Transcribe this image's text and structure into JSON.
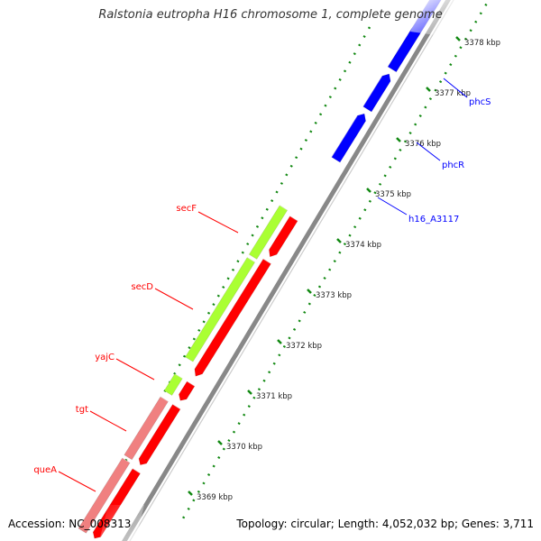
{
  "title": "Ralstonia eutropha H16 chromosome 1, complete genome",
  "footer": {
    "accession": "Accession: NC_008313",
    "summary": "Topology: circular; Length: 4,052,032 bp; Genes: 3,711"
  },
  "colors": {
    "forward_gene": "#0000ff",
    "reverse_gene": "#ff0000",
    "reverse_gene_light": "#f08080",
    "cds_green": "#aaff33",
    "backbone": "#888888",
    "ticks": "#118811"
  },
  "tick_labels": [
    "3378 kbp",
    "3377 kbp",
    "3376 kbp",
    "3375 kbp",
    "3374 kbp",
    "3373 kbp",
    "3372 kbp",
    "3371 kbp",
    "3370 kbp",
    "3369 kbp"
  ],
  "forward_genes": [
    {
      "label": "phcS"
    },
    {
      "label": "phcR"
    },
    {
      "label": "h16_A3117"
    }
  ],
  "reverse_genes": [
    {
      "label": "secF"
    },
    {
      "label": "secD"
    },
    {
      "label": "yajC"
    },
    {
      "label": "tgt"
    },
    {
      "label": "queA"
    }
  ]
}
